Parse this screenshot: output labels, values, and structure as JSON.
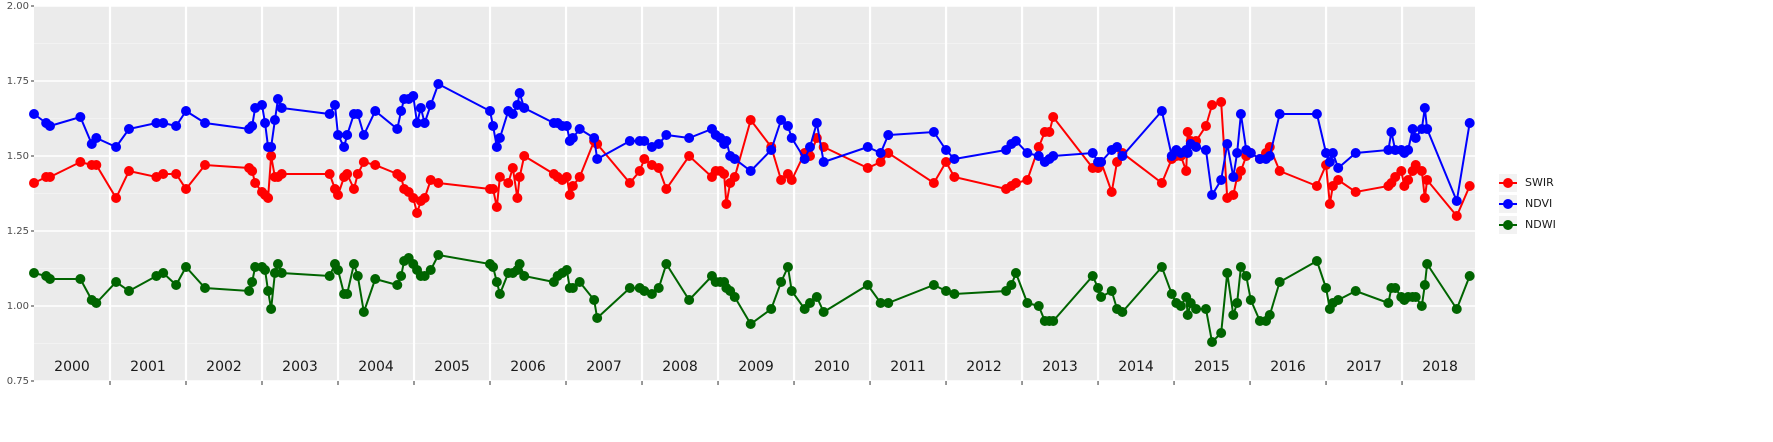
{
  "chart_data": {
    "type": "line",
    "x": [
      2000.0,
      2000.16,
      2000.21,
      2000.61,
      2000.76,
      2000.82,
      2001.08,
      2001.25,
      2001.61,
      2001.7,
      2001.87,
      2002.0,
      2002.25,
      2002.83,
      2002.87,
      2002.91,
      2003.0,
      2003.04,
      2003.08,
      2003.12,
      2003.17,
      2003.21,
      2003.26,
      2003.89,
      2003.96,
      2004.0,
      2004.08,
      2004.12,
      2004.21,
      2004.26,
      2004.34,
      2004.49,
      2004.78,
      2004.83,
      2004.87,
      2004.93,
      2004.99,
      2005.04,
      2005.09,
      2005.14,
      2005.22,
      2005.32,
      2006.0,
      2006.04,
      2006.09,
      2006.13,
      2006.24,
      2006.3,
      2006.36,
      2006.39,
      2006.45,
      2006.84,
      2006.89,
      2006.95,
      2007.01,
      2007.05,
      2007.09,
      2007.18,
      2007.37,
      2007.41,
      2007.84,
      2007.97,
      2008.03,
      2008.13,
      2008.22,
      2008.32,
      2008.62,
      2008.92,
      2008.97,
      2009.03,
      2009.08,
      2009.11,
      2009.16,
      2009.22,
      2009.43,
      2009.7,
      2009.83,
      2009.92,
      2009.97,
      2010.14,
      2010.21,
      2010.3,
      2010.39,
      2010.97,
      2011.14,
      2011.24,
      2011.84,
      2012.0,
      2012.11,
      2012.79,
      2012.86,
      2012.92,
      2013.07,
      2013.22,
      2013.3,
      2013.36,
      2013.41,
      2013.93,
      2014.0,
      2014.04,
      2014.18,
      2014.25,
      2014.32,
      2014.84,
      2014.97,
      2015.03,
      2015.09,
      2015.16,
      2015.18,
      2015.22,
      2015.29,
      2015.42,
      2015.5,
      2015.62,
      2015.7,
      2015.78,
      2015.83,
      2015.88,
      2015.95,
      2016.01,
      2016.13,
      2016.21,
      2016.26,
      2016.39,
      2016.88,
      2017.0,
      2017.05,
      2017.09,
      2017.16,
      2017.39,
      2017.82,
      2017.86,
      2017.91,
      2017.99,
      2018.03,
      2018.08,
      2018.14,
      2018.18,
      2018.26,
      2018.3,
      2018.33,
      2018.72,
      2018.89
    ],
    "series": [
      {
        "name": "SWIR",
        "color": "#ff0000",
        "values": [
          1.41,
          1.43,
          1.43,
          1.48,
          1.47,
          1.47,
          1.36,
          1.45,
          1.43,
          1.44,
          1.44,
          1.39,
          1.47,
          1.46,
          1.45,
          1.41,
          1.38,
          1.37,
          1.36,
          1.5,
          1.43,
          1.43,
          1.44,
          1.44,
          1.39,
          1.37,
          1.43,
          1.44,
          1.39,
          1.44,
          1.48,
          1.47,
          1.44,
          1.43,
          1.39,
          1.38,
          1.36,
          1.31,
          1.35,
          1.36,
          1.42,
          1.41,
          1.39,
          1.39,
          1.33,
          1.43,
          1.41,
          1.46,
          1.36,
          1.43,
          1.5,
          1.44,
          1.43,
          1.42,
          1.43,
          1.37,
          1.4,
          1.43,
          1.55,
          1.54,
          1.41,
          1.45,
          1.49,
          1.47,
          1.46,
          1.39,
          1.5,
          1.43,
          1.45,
          1.45,
          1.44,
          1.34,
          1.41,
          1.43,
          1.62,
          1.53,
          1.42,
          1.44,
          1.42,
          1.51,
          1.5,
          1.56,
          1.53,
          1.46,
          1.48,
          1.51,
          1.41,
          1.48,
          1.43,
          1.39,
          1.4,
          1.41,
          1.42,
          1.53,
          1.58,
          1.58,
          1.63,
          1.46,
          1.46,
          1.48,
          1.38,
          1.48,
          1.51,
          1.41,
          1.49,
          1.5,
          1.5,
          1.45,
          1.58,
          1.55,
          1.55,
          1.6,
          1.67,
          1.68,
          1.36,
          1.37,
          1.43,
          1.45,
          1.5,
          1.51,
          1.49,
          1.51,
          1.53,
          1.45,
          1.4,
          1.47,
          1.34,
          1.4,
          1.42,
          1.38,
          1.4,
          1.41,
          1.43,
          1.45,
          1.4,
          1.42,
          1.45,
          1.47,
          1.45,
          1.36,
          1.42,
          1.3,
          1.4
        ]
      },
      {
        "name": "NDVI",
        "color": "#0000ff",
        "values": [
          1.64,
          1.61,
          1.6,
          1.63,
          1.54,
          1.56,
          1.53,
          1.59,
          1.61,
          1.61,
          1.6,
          1.65,
          1.61,
          1.59,
          1.6,
          1.66,
          1.67,
          1.61,
          1.53,
          1.53,
          1.62,
          1.69,
          1.66,
          1.64,
          1.67,
          1.57,
          1.53,
          1.57,
          1.64,
          1.64,
          1.57,
          1.65,
          1.59,
          1.65,
          1.69,
          1.69,
          1.7,
          1.61,
          1.66,
          1.61,
          1.67,
          1.74,
          1.65,
          1.6,
          1.53,
          1.56,
          1.65,
          1.64,
          1.67,
          1.71,
          1.66,
          1.61,
          1.61,
          1.6,
          1.6,
          1.55,
          1.56,
          1.59,
          1.56,
          1.49,
          1.55,
          1.55,
          1.55,
          1.53,
          1.54,
          1.57,
          1.56,
          1.59,
          1.57,
          1.56,
          1.54,
          1.55,
          1.5,
          1.49,
          1.45,
          1.52,
          1.62,
          1.6,
          1.56,
          1.49,
          1.53,
          1.61,
          1.48,
          1.53,
          1.51,
          1.57,
          1.58,
          1.52,
          1.49,
          1.52,
          1.54,
          1.55,
          1.51,
          1.5,
          1.48,
          1.49,
          1.5,
          1.51,
          1.48,
          1.48,
          1.52,
          1.53,
          1.5,
          1.65,
          1.5,
          1.52,
          1.51,
          1.52,
          1.51,
          1.54,
          1.53,
          1.52,
          1.37,
          1.42,
          1.54,
          1.43,
          1.51,
          1.64,
          1.52,
          1.51,
          1.49,
          1.49,
          1.5,
          1.64,
          1.64,
          1.51,
          1.48,
          1.51,
          1.46,
          1.51,
          1.52,
          1.58,
          1.52,
          1.52,
          1.51,
          1.52,
          1.59,
          1.56,
          1.59,
          1.66,
          1.59,
          1.35,
          1.61
        ]
      },
      {
        "name": "NDWI",
        "color": "#006400",
        "values": [
          1.11,
          1.1,
          1.09,
          1.09,
          1.02,
          1.01,
          1.08,
          1.05,
          1.1,
          1.11,
          1.07,
          1.13,
          1.06,
          1.05,
          1.08,
          1.13,
          1.13,
          1.12,
          1.05,
          0.99,
          1.11,
          1.14,
          1.11,
          1.1,
          1.14,
          1.12,
          1.04,
          1.04,
          1.14,
          1.1,
          0.98,
          1.09,
          1.07,
          1.1,
          1.15,
          1.16,
          1.14,
          1.12,
          1.1,
          1.1,
          1.12,
          1.17,
          1.14,
          1.13,
          1.08,
          1.04,
          1.11,
          1.11,
          1.12,
          1.14,
          1.1,
          1.08,
          1.1,
          1.11,
          1.12,
          1.06,
          1.06,
          1.08,
          1.02,
          0.96,
          1.06,
          1.06,
          1.05,
          1.04,
          1.06,
          1.14,
          1.02,
          1.1,
          1.08,
          1.08,
          1.08,
          1.06,
          1.05,
          1.03,
          0.94,
          0.99,
          1.08,
          1.13,
          1.05,
          0.99,
          1.01,
          1.03,
          0.98,
          1.07,
          1.01,
          1.01,
          1.07,
          1.05,
          1.04,
          1.05,
          1.07,
          1.11,
          1.01,
          1.0,
          0.95,
          0.95,
          0.95,
          1.1,
          1.06,
          1.03,
          1.05,
          0.99,
          0.98,
          1.13,
          1.04,
          1.01,
          1.0,
          1.03,
          0.97,
          1.01,
          0.99,
          0.99,
          0.88,
          0.91,
          1.11,
          0.97,
          1.01,
          1.13,
          1.1,
          1.02,
          0.95,
          0.95,
          0.97,
          1.08,
          1.15,
          1.06,
          0.99,
          1.01,
          1.02,
          1.05,
          1.01,
          1.06,
          1.06,
          1.03,
          1.02,
          1.03,
          1.03,
          1.03,
          1.0,
          1.07,
          1.14,
          0.99,
          1.1
        ]
      }
    ],
    "xlim": [
      2000,
      2018.96
    ],
    "ylim": [
      0.75,
      2.0
    ],
    "yticks": [
      {
        "value": 0.75,
        "label": "0.75"
      },
      {
        "value": 1.0,
        "label": "1.00"
      },
      {
        "value": 1.25,
        "label": "1.25"
      },
      {
        "value": 1.5,
        "label": "1.50"
      },
      {
        "value": 1.75,
        "label": "1.75"
      },
      {
        "value": 2.0,
        "label": "2.00"
      }
    ],
    "xgrid": [
      2001,
      2002,
      2003,
      2004,
      2005,
      2006,
      2007,
      2008,
      2009,
      2010,
      2011,
      2012,
      2013,
      2014,
      2015,
      2016,
      2017,
      2018
    ],
    "year_labels": [
      {
        "value": 2000.5,
        "label": "2000"
      },
      {
        "value": 2001.5,
        "label": "2001"
      },
      {
        "value": 2002.5,
        "label": "2002"
      },
      {
        "value": 2003.5,
        "label": "2003"
      },
      {
        "value": 2004.5,
        "label": "2004"
      },
      {
        "value": 2005.5,
        "label": "2005"
      },
      {
        "value": 2006.5,
        "label": "2006"
      },
      {
        "value": 2007.5,
        "label": "2007"
      },
      {
        "value": 2008.5,
        "label": "2008"
      },
      {
        "value": 2009.5,
        "label": "2009"
      },
      {
        "value": 2010.5,
        "label": "2010"
      },
      {
        "value": 2011.5,
        "label": "2011"
      },
      {
        "value": 2012.5,
        "label": "2012"
      },
      {
        "value": 2013.5,
        "label": "2013"
      },
      {
        "value": 2014.5,
        "label": "2014"
      },
      {
        "value": 2015.5,
        "label": "2015"
      },
      {
        "value": 2016.5,
        "label": "2016"
      },
      {
        "value": 2017.5,
        "label": "2017"
      },
      {
        "value": 2018.5,
        "label": "2018"
      }
    ],
    "grid": true,
    "legend": "right"
  }
}
